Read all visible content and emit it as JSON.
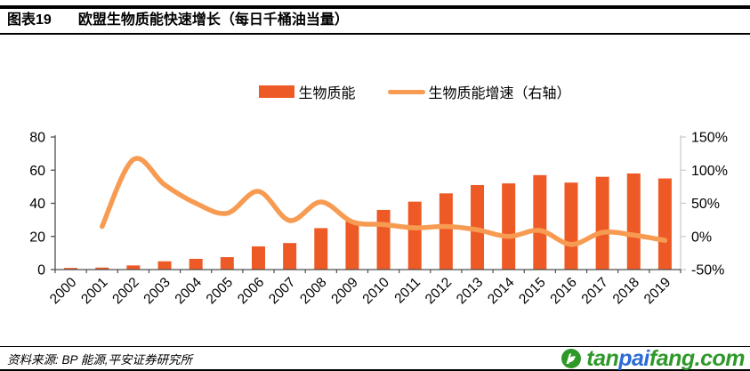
{
  "header": {
    "figure_label": "图表19",
    "title": "欧盟生物质能快速增长（每日千桶油当量）"
  },
  "legend": {
    "bar_label": "生物质能",
    "line_label": "生物质能增速（右轴）"
  },
  "colors": {
    "bar": "#EE5A25",
    "line": "#F89B52",
    "axis_dark": "#4d4d4d",
    "axis_light": "#c9c9c9",
    "logo_green": "#2E9929",
    "logo_blue": "#2B6BD5"
  },
  "chart_data": {
    "type": "bar+line",
    "title": "欧盟生物质能快速增长（每日千桶油当量）",
    "categories": [
      "2000",
      "2001",
      "2002",
      "2003",
      "2004",
      "2005",
      "2006",
      "2007",
      "2008",
      "2009",
      "2010",
      "2011",
      "2012",
      "2013",
      "2014",
      "2015",
      "2016",
      "2017",
      "2018",
      "2019"
    ],
    "series": [
      {
        "name": "生物质能",
        "type": "bar",
        "axis": "left",
        "color": "#EE5A25",
        "values": [
          1,
          1.2,
          2.5,
          5,
          6.5,
          7.5,
          14,
          16,
          25,
          29,
          36,
          41,
          46,
          51,
          52,
          57,
          52.5,
          56,
          58,
          55
        ]
      },
      {
        "name": "生物质能增速（右轴）",
        "type": "line",
        "axis": "right",
        "color": "#F89B52",
        "values": [
          null,
          15,
          116,
          78,
          50,
          35,
          68,
          24,
          52,
          22,
          18,
          13,
          15,
          10,
          0,
          9,
          -12,
          6,
          2,
          -6
        ]
      }
    ],
    "left_axis": {
      "min": 0,
      "max": 80,
      "ticks": [
        0,
        20,
        40,
        60,
        80
      ]
    },
    "right_axis": {
      "min": -50,
      "max": 150,
      "ticks": [
        -50,
        0,
        50,
        100,
        150
      ],
      "tick_suffix": "%"
    },
    "grid": false,
    "legend_position": "top-center",
    "x_labels_rotated_degrees": 45
  },
  "footer": {
    "source": "资料来源: BP 能源,平安证券研究所"
  },
  "logo": {
    "part1": "tan",
    "part2": "pai",
    "part3": "fang.com"
  }
}
